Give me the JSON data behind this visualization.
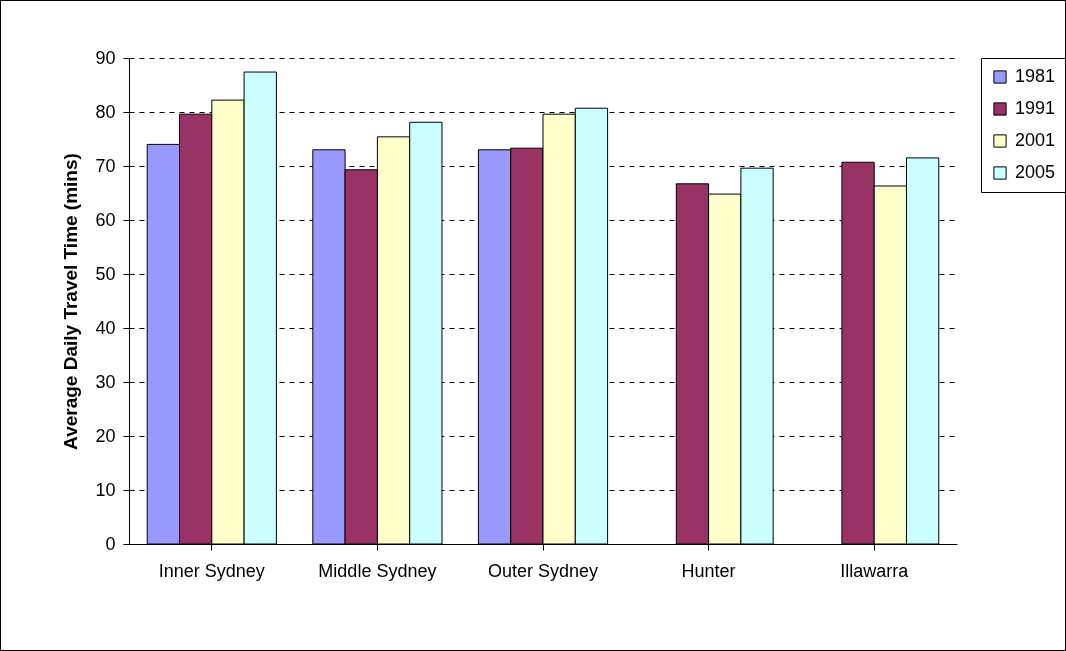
{
  "chart_data": {
    "type": "bar",
    "ylabel": "Average Daily Travel Time (mins)",
    "categories": [
      "Inner Sydney",
      "Middle Sydney",
      "Outer Sydney",
      "Hunter",
      "Illawarra"
    ],
    "series": [
      {
        "name": "1981",
        "color": "#9999ff",
        "values": [
          74,
          73,
          73,
          null,
          null
        ]
      },
      {
        "name": "1991",
        "color": "#993366",
        "values": [
          79.6,
          69.3,
          73.3,
          66.7,
          70.7
        ]
      },
      {
        "name": "2001",
        "color": "#ffffcc",
        "values": [
          82.2,
          75.4,
          79.6,
          64.8,
          66.3
        ]
      },
      {
        "name": "2005",
        "color": "#ccffff",
        "values": [
          87.4,
          78.1,
          80.7,
          69.6,
          71.5
        ]
      }
    ],
    "ylim": [
      0,
      90
    ],
    "yticks": [
      0,
      10,
      20,
      30,
      40,
      50,
      60,
      70,
      80,
      90
    ],
    "grid": "y",
    "legend": "right"
  }
}
